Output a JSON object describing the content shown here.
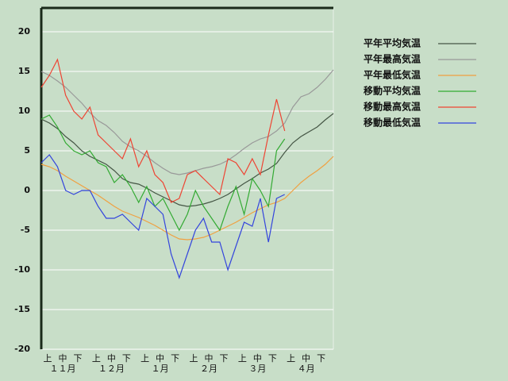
{
  "chart_data": {
    "type": "line",
    "ylim": [
      -20,
      23
    ],
    "yticks": [
      -20,
      -15,
      -10,
      -5,
      0,
      5,
      10,
      15,
      20
    ],
    "grid": true,
    "legend": "right",
    "dekad_labels": [
      "上",
      "中",
      "下",
      "上",
      "中",
      "下",
      "上",
      "中",
      "下",
      "上",
      "中",
      "下",
      "上",
      "中",
      "下",
      "上",
      "中",
      "下"
    ],
    "month_labels": [
      "１１月",
      "１２月",
      "１月",
      "２月",
      "３月",
      "４月"
    ],
    "series": [
      {
        "name": "平年平均気温",
        "color": "#445544",
        "values": [
          9.0,
          8.5,
          7.8,
          6.8,
          6.0,
          5.0,
          4.3,
          3.8,
          3.3,
          2.5,
          1.5,
          1.0,
          0.8,
          0.3,
          -0.3,
          -0.8,
          -1.3,
          -1.8,
          -2.0,
          -1.9,
          -1.7,
          -1.4,
          -1.0,
          -0.5,
          0.2,
          0.9,
          1.5,
          2.2,
          2.7,
          3.4,
          4.8,
          6.0,
          6.8,
          7.4,
          8.0,
          8.9,
          9.7
        ]
      },
      {
        "name": "平年最高気温",
        "color": "#999999",
        "values": [
          15.0,
          14.5,
          13.8,
          13.0,
          12.0,
          11.0,
          9.8,
          8.8,
          8.2,
          7.3,
          6.2,
          5.5,
          5.0,
          4.3,
          3.5,
          2.8,
          2.2,
          2.0,
          2.2,
          2.5,
          2.8,
          3.0,
          3.3,
          3.8,
          4.5,
          5.3,
          6.0,
          6.5,
          6.8,
          7.5,
          8.5,
          10.5,
          11.8,
          12.2,
          13.0,
          14.0,
          15.2
        ]
      },
      {
        "name": "平年最低気温",
        "color": "#f0a040",
        "values": [
          3.3,
          3.0,
          2.5,
          1.8,
          1.2,
          0.6,
          0.0,
          -0.6,
          -1.3,
          -2.0,
          -2.6,
          -3.0,
          -3.4,
          -3.9,
          -4.4,
          -5.0,
          -5.6,
          -6.1,
          -6.2,
          -6.1,
          -5.9,
          -5.5,
          -5.0,
          -4.5,
          -4.0,
          -3.4,
          -2.8,
          -2.3,
          -1.8,
          -1.5,
          -1.0,
          0.0,
          1.0,
          1.8,
          2.5,
          3.3,
          4.3
        ]
      },
      {
        "name": "移動平均気温",
        "color": "#33aa33",
        "values": [
          9.0,
          9.5,
          8.0,
          6.0,
          5.0,
          4.5,
          5.0,
          3.5,
          3.0,
          1.0,
          2.0,
          0.5,
          -1.5,
          0.5,
          -2.0,
          -1.0,
          -3.0,
          -5.0,
          -3.0,
          0.0,
          -2.0,
          -3.5,
          -5.0,
          -2.0,
          0.5,
          -3.0,
          1.5,
          0.0,
          -2.0,
          5.0,
          6.5,
          null,
          null,
          null,
          null,
          null,
          null
        ]
      },
      {
        "name": "移動最高気温",
        "color": "#ee4433",
        "values": [
          13.0,
          14.5,
          16.5,
          12.0,
          10.0,
          9.0,
          10.5,
          7.0,
          6.0,
          5.0,
          4.0,
          6.5,
          3.0,
          5.0,
          2.0,
          1.0,
          -1.5,
          -1.0,
          2.0,
          2.5,
          1.5,
          0.5,
          -0.5,
          4.0,
          3.5,
          2.0,
          4.0,
          2.0,
          7.0,
          11.5,
          7.5,
          null,
          null,
          null,
          null,
          null,
          null
        ]
      },
      {
        "name": "移動最低気温",
        "color": "#3344dd",
        "values": [
          3.5,
          4.5,
          3.0,
          0.0,
          -0.5,
          0.0,
          0.0,
          -2.0,
          -3.5,
          -3.5,
          -3.0,
          -4.0,
          -5.0,
          -1.0,
          -2.0,
          -3.0,
          -8.0,
          -11.0,
          -8.0,
          -5.0,
          -3.5,
          -6.5,
          -6.5,
          -10.0,
          -7.0,
          -4.0,
          -4.5,
          -1.0,
          -6.5,
          -1.0,
          -0.5,
          null,
          null,
          null,
          null,
          null,
          null
        ]
      }
    ]
  }
}
